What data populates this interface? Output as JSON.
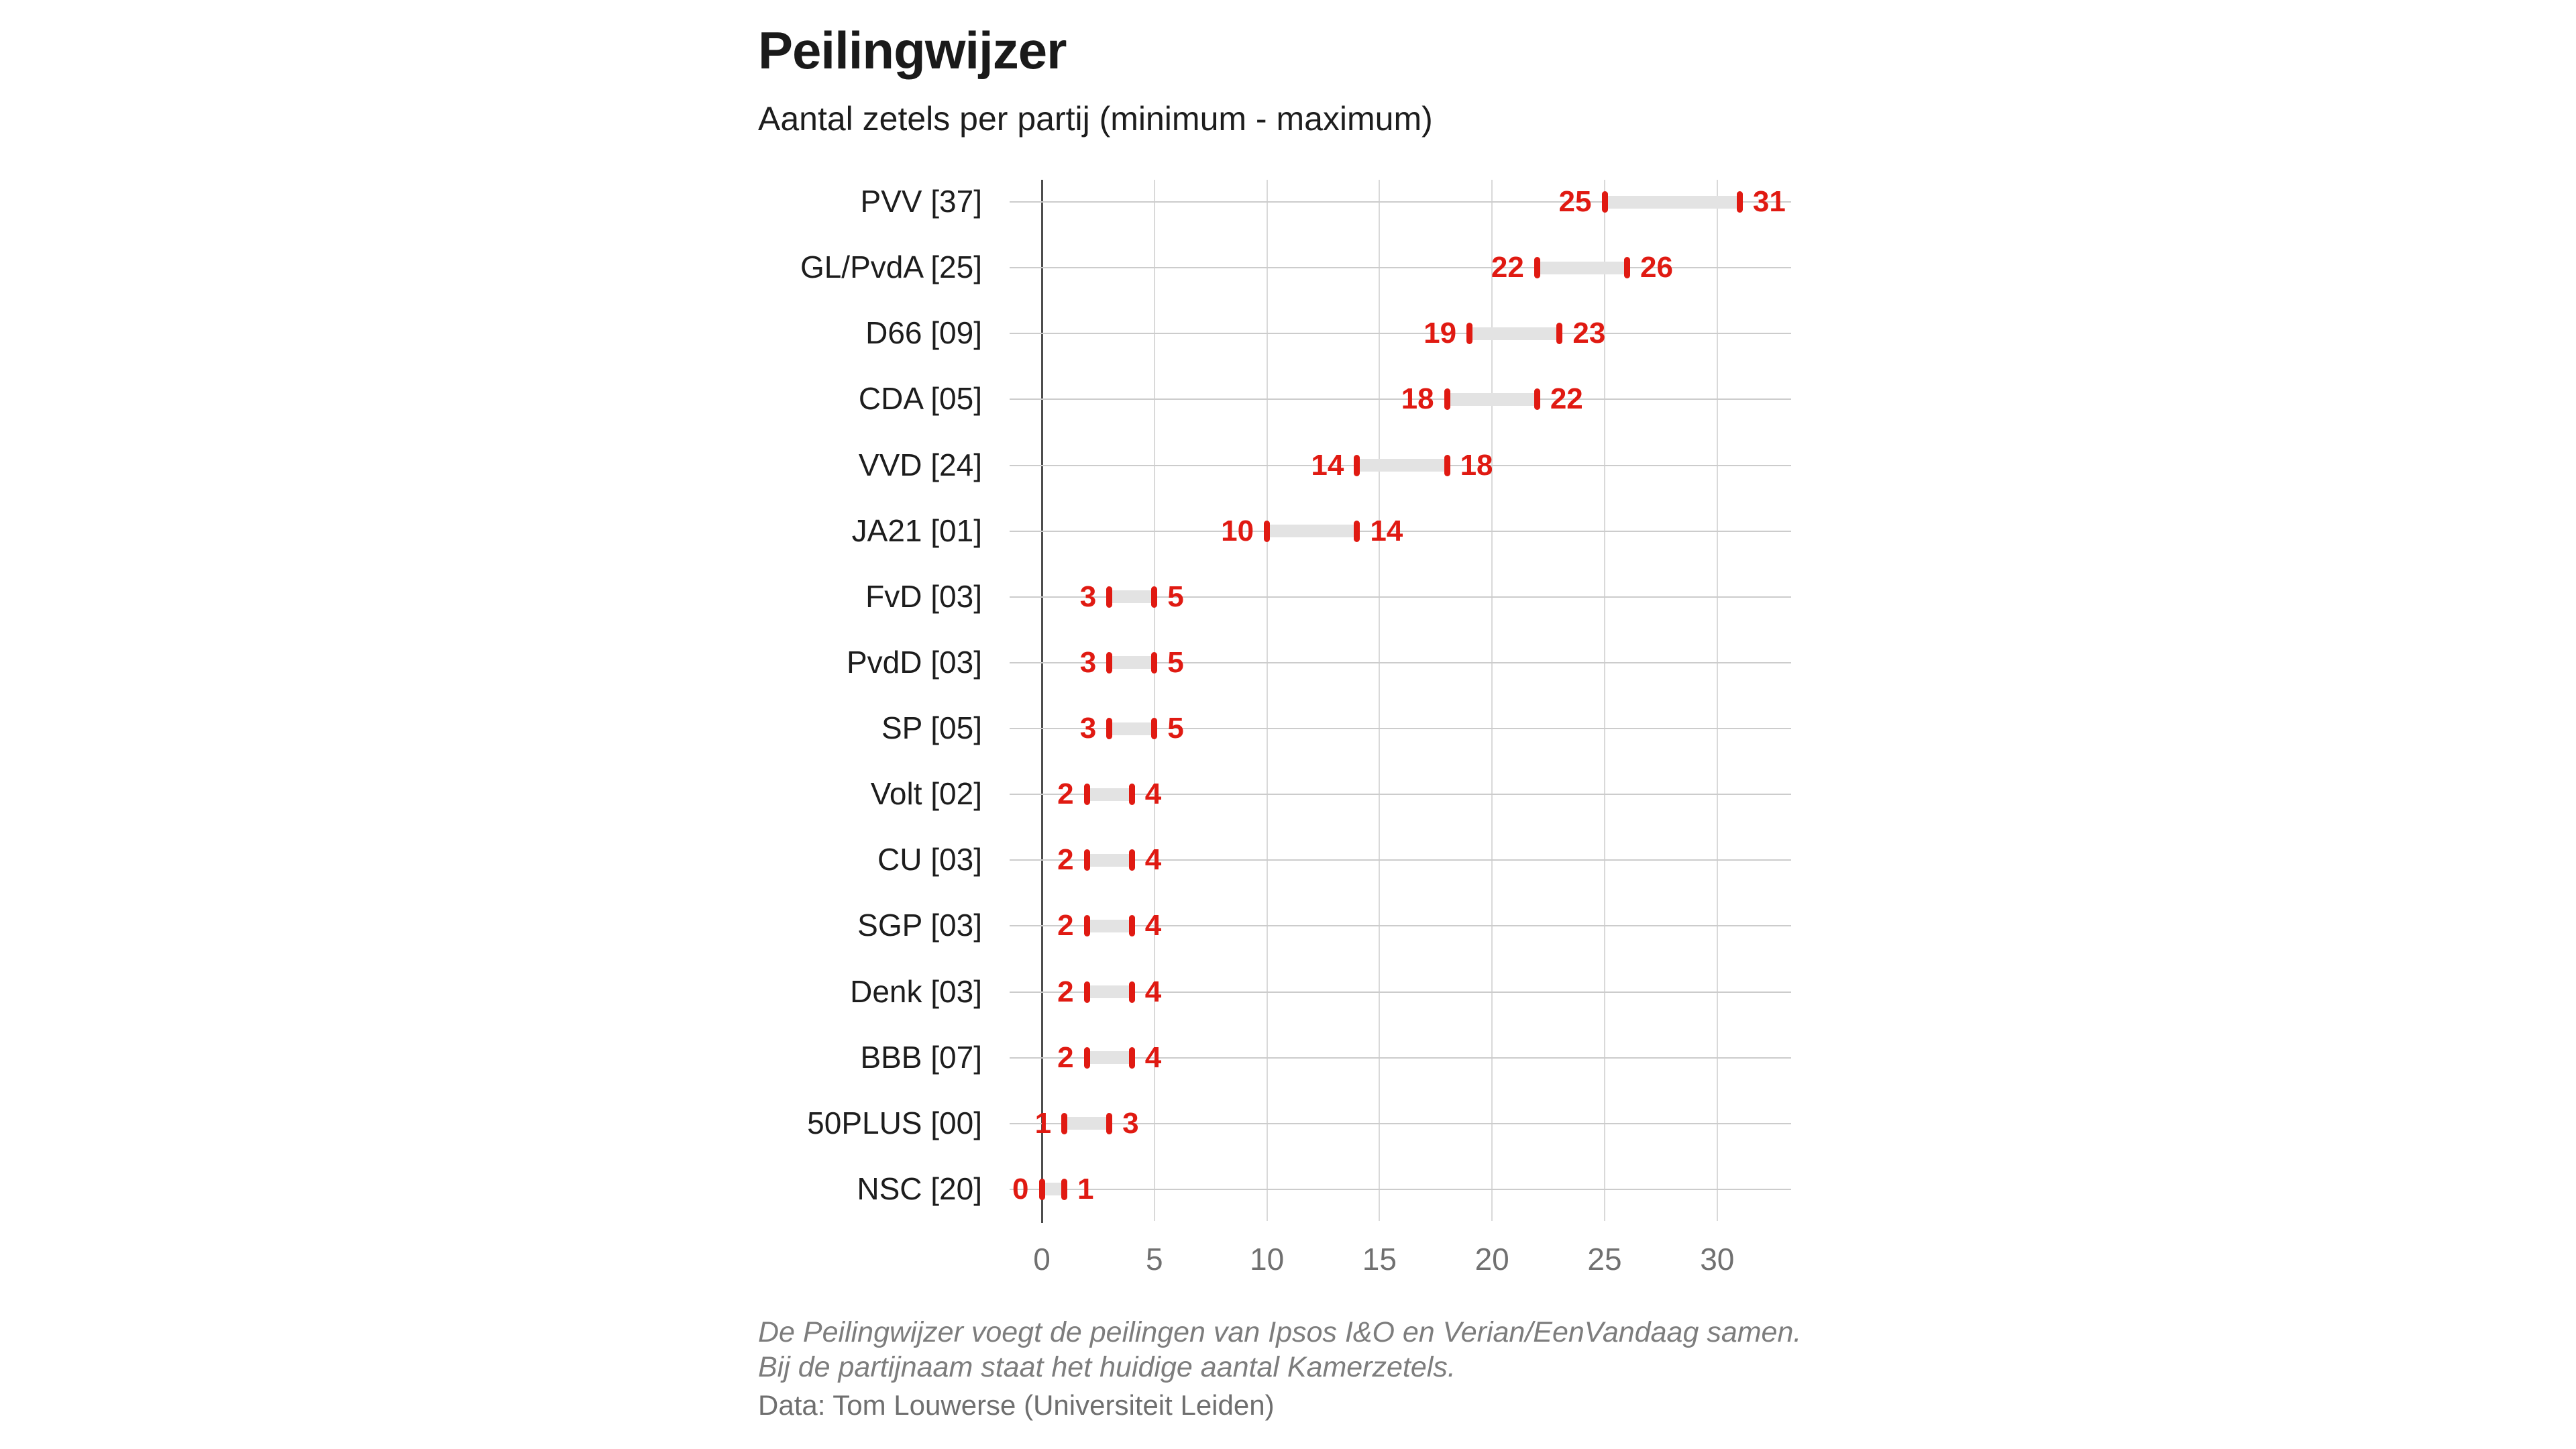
{
  "header": {
    "title": "Peilingwijzer",
    "subtitle": "Aantal zetels per partij (minimum - maximum)"
  },
  "footer": {
    "footnote_line1": "De Peilingwijzer voegt de peilingen van Ipsos I&O en Verian/EenVandaag samen.",
    "footnote_line2": "Bij de partijnaam staat het huidige aantal Kamerzetels.",
    "credit": "Data: Tom Louwerse (Universiteit Leiden)"
  },
  "colors": {
    "red": "#e01a12",
    "bar": "#e3e3e3",
    "row_gridline": "#cccccc",
    "tick_gridline": "#d9d9d9",
    "axis": "#4d4d4d",
    "tick_label": "#707070",
    "party_label": "#1d1d1d",
    "footnote": "#7d7d7d",
    "credit": "#6f6f6f"
  },
  "chart_data": {
    "type": "bar",
    "subtype": "horizontal-range-dumbbell",
    "title": "Peilingwijzer",
    "subtitle": "Aantal zetels per partij (minimum - maximum)",
    "xlabel": "",
    "ylabel": "",
    "xlim": [
      0,
      33.3
    ],
    "x_ticks": [
      0,
      5,
      10,
      15,
      20,
      25,
      30
    ],
    "grid": true,
    "legend": false,
    "value_labels": "min and max shown in red at bar ends",
    "categories": [
      "PVV [37]",
      "GL/PvdA [25]",
      "D66 [09]",
      "CDA [05]",
      "VVD [24]",
      "JA21 [01]",
      "FvD [03]",
      "PvdD [03]",
      "SP [05]",
      "Volt [02]",
      "CU [03]",
      "SGP [03]",
      "Denk [03]",
      "BBB [07]",
      "50PLUS [00]",
      "NSC [20]"
    ],
    "series": [
      {
        "name": "minimum",
        "values": [
          25,
          22,
          19,
          18,
          14,
          10,
          3,
          3,
          3,
          2,
          2,
          2,
          2,
          2,
          1,
          0
        ]
      },
      {
        "name": "maximum",
        "values": [
          31,
          26,
          23,
          22,
          18,
          14,
          5,
          5,
          5,
          4,
          4,
          4,
          4,
          4,
          3,
          1
        ]
      }
    ],
    "parties": [
      {
        "label": "PVV [37]",
        "name": "PVV",
        "current_seats": "37",
        "min": 25,
        "max": 31
      },
      {
        "label": "GL/PvdA [25]",
        "name": "GL/PvdA",
        "current_seats": "25",
        "min": 22,
        "max": 26
      },
      {
        "label": "D66 [09]",
        "name": "D66",
        "current_seats": "09",
        "min": 19,
        "max": 23
      },
      {
        "label": "CDA [05]",
        "name": "CDA",
        "current_seats": "05",
        "min": 18,
        "max": 22
      },
      {
        "label": "VVD [24]",
        "name": "VVD",
        "current_seats": "24",
        "min": 14,
        "max": 18
      },
      {
        "label": "JA21 [01]",
        "name": "JA21",
        "current_seats": "01",
        "min": 10,
        "max": 14
      },
      {
        "label": "FvD [03]",
        "name": "FvD",
        "current_seats": "03",
        "min": 3,
        "max": 5
      },
      {
        "label": "PvdD [03]",
        "name": "PvdD",
        "current_seats": "03",
        "min": 3,
        "max": 5
      },
      {
        "label": "SP [05]",
        "name": "SP",
        "current_seats": "05",
        "min": 3,
        "max": 5
      },
      {
        "label": "Volt [02]",
        "name": "Volt",
        "current_seats": "02",
        "min": 2,
        "max": 4
      },
      {
        "label": "CU [03]",
        "name": "CU",
        "current_seats": "03",
        "min": 2,
        "max": 4
      },
      {
        "label": "SGP [03]",
        "name": "SGP",
        "current_seats": "03",
        "min": 2,
        "max": 4
      },
      {
        "label": "Denk [03]",
        "name": "Denk",
        "current_seats": "03",
        "min": 2,
        "max": 4
      },
      {
        "label": "BBB [07]",
        "name": "BBB",
        "current_seats": "07",
        "min": 2,
        "max": 4
      },
      {
        "label": "50PLUS [00]",
        "name": "50PLUS",
        "current_seats": "00",
        "min": 1,
        "max": 3
      },
      {
        "label": "NSC [20]",
        "name": "NSC",
        "current_seats": "20",
        "min": 0,
        "max": 1
      }
    ]
  }
}
